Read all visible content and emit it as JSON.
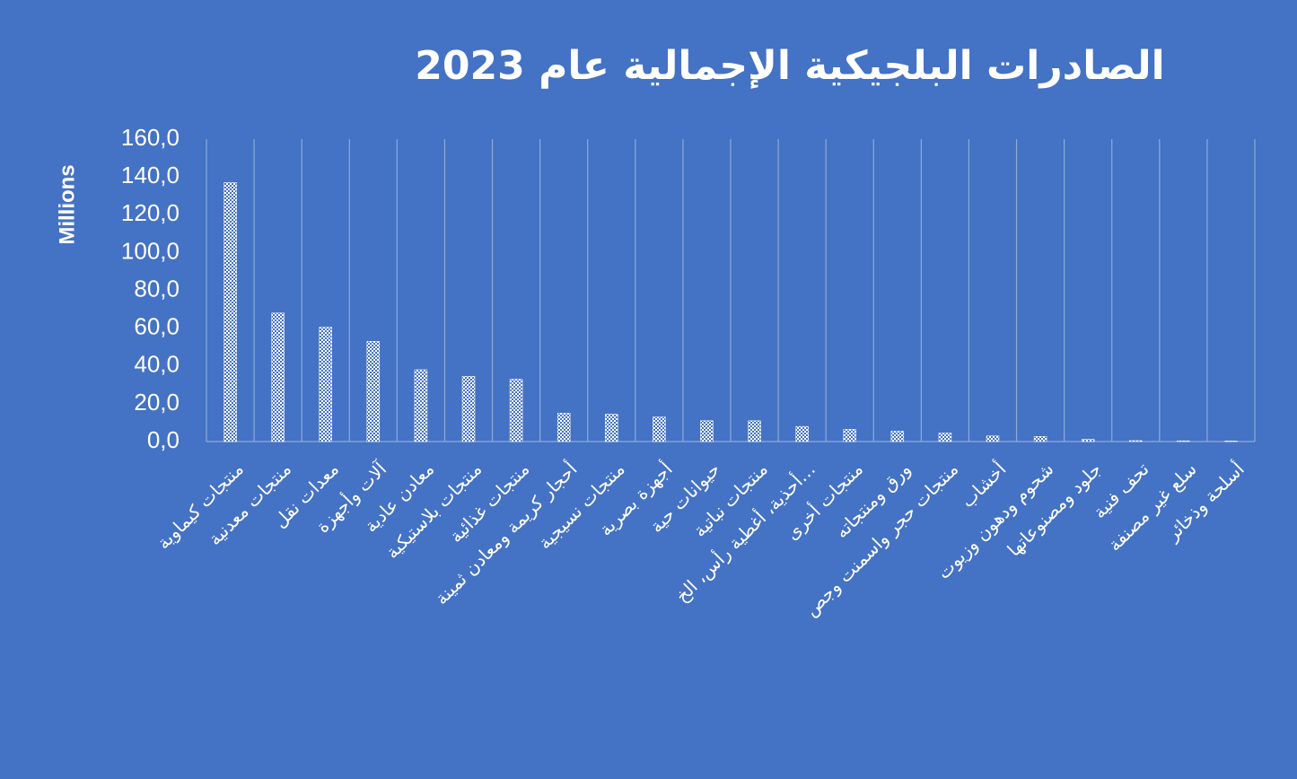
{
  "chart_data": {
    "type": "bar",
    "title": "الصادرات البلجيكية الإجمالية عام 2023",
    "y_label": "Millions",
    "categories": [
      "منتجات كيماوية",
      "منتجات معدنية",
      "معدات نقل",
      "آلات وأجهزة",
      "معادن عادية",
      "منتجات بلاستيكية",
      "منتجات غذائية",
      "أحجار كريمة ومعادن ثمينة",
      "منتجات نسيجية",
      "أجهزة بصرية",
      "حيوانات حية",
      "منتجات نباتية",
      "أحذية، أغطية رأس، الخ…",
      "منتجات أخرى",
      "ورق ومنتجاته",
      "منتجات حجر واسمنت وجص",
      "أخشاب",
      "شحوم ودهون وزيوت",
      "جلود ومصنوعاتها",
      "تحف فنية",
      "سلع غير مصنفة",
      "أسلحة وذخائر"
    ],
    "values": [
      137,
      68,
      60.5,
      53,
      38,
      34.5,
      33,
      15,
      14.5,
      13,
      11,
      11,
      8,
      6.5,
      5.5,
      4.5,
      3,
      2.7,
      1.2,
      0.5,
      0.4,
      0.3
    ],
    "color": "#ffffff",
    "ylim": [
      0,
      160
    ],
    "yticks": [
      {
        "value": 0,
        "label": "0,0"
      },
      {
        "value": 20,
        "label": "20,0"
      },
      {
        "value": 40,
        "label": "40,0"
      },
      {
        "value": 60,
        "label": "60,0"
      },
      {
        "value": 80,
        "label": "80,0"
      },
      {
        "value": 100,
        "label": "100,0"
      },
      {
        "value": 120,
        "label": "120,0"
      },
      {
        "value": 140,
        "label": "140,0"
      },
      {
        "value": 160,
        "label": "160,0"
      }
    ],
    "grid": true
  }
}
